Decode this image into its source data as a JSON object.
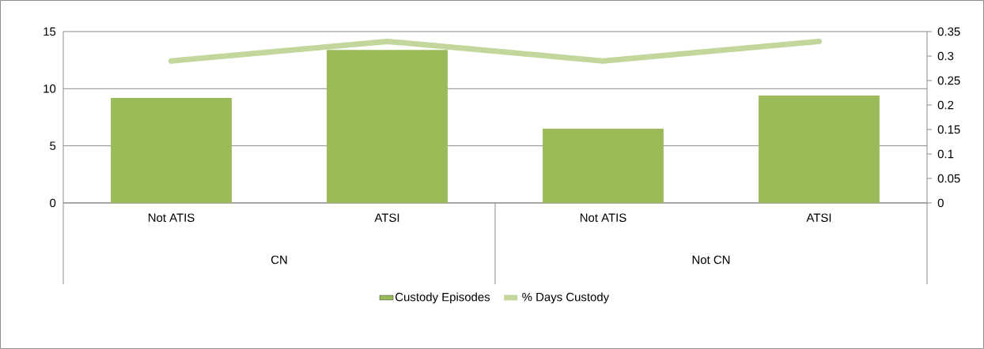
{
  "chart_data": {
    "type": "bar",
    "categories": [
      "Not ATIS",
      "ATSI",
      "Not ATIS",
      "ATSI"
    ],
    "series": [
      {
        "name": "Custody Episodes",
        "type": "bar",
        "color": "#9bbb59",
        "values": [
          9.2,
          13.4,
          6.5,
          9.4
        ]
      },
      {
        "name": "% Days Custody",
        "type": "line",
        "axis": "y2",
        "color": "#c3d69b",
        "values": [
          0.29,
          0.33,
          0.29,
          0.33
        ]
      }
    ],
    "ylim": [
      0,
      15
    ],
    "yticks": [
      0,
      5,
      10,
      15
    ],
    "y2lim": [
      0,
      0.35
    ],
    "y2ticks": [
      0,
      0.05,
      0.1,
      0.15,
      0.2,
      0.25,
      0.3,
      0.35
    ],
    "grid": "y",
    "legend": "bottom",
    "marker": "none",
    "annotations": [
      "CN",
      "Not CN"
    ]
  }
}
